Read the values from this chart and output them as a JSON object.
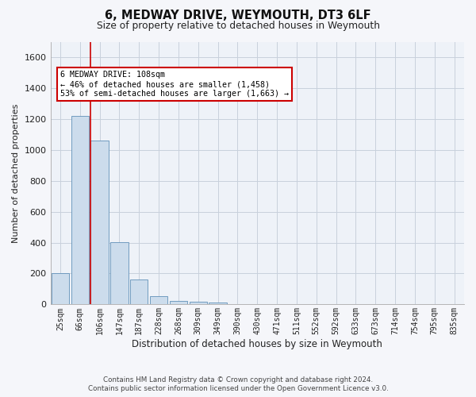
{
  "title": "6, MEDWAY DRIVE, WEYMOUTH, DT3 6LF",
  "subtitle": "Size of property relative to detached houses in Weymouth",
  "xlabel": "Distribution of detached houses by size in Weymouth",
  "ylabel": "Number of detached properties",
  "footer_line1": "Contains HM Land Registry data © Crown copyright and database right 2024.",
  "footer_line2": "Contains public sector information licensed under the Open Government Licence v3.0.",
  "bin_labels": [
    "25sqm",
    "66sqm",
    "106sqm",
    "147sqm",
    "187sqm",
    "228sqm",
    "268sqm",
    "309sqm",
    "349sqm",
    "390sqm",
    "430sqm",
    "471sqm",
    "511sqm",
    "552sqm",
    "592sqm",
    "633sqm",
    "673sqm",
    "714sqm",
    "754sqm",
    "795sqm",
    "835sqm"
  ],
  "bar_values": [
    200,
    1220,
    1060,
    405,
    160,
    55,
    25,
    15,
    10,
    0,
    0,
    0,
    0,
    0,
    0,
    0,
    0,
    0,
    0,
    0,
    0
  ],
  "bar_color": "#ccdcec",
  "bar_edge_color": "#6090b8",
  "grid_color": "#c8d0dc",
  "annotation_text": "6 MEDWAY DRIVE: 108sqm\n← 46% of detached houses are smaller (1,458)\n53% of semi-detached houses are larger (1,663) →",
  "vline_x": 1.54,
  "vline_color": "#cc0000",
  "ylim": [
    0,
    1700
  ],
  "yticks": [
    0,
    200,
    400,
    600,
    800,
    1000,
    1200,
    1400,
    1600
  ],
  "background_color": "#f5f6fa",
  "plot_background": "#eef2f8"
}
